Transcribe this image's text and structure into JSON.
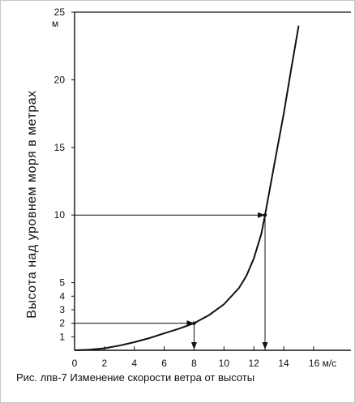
{
  "chart_data": {
    "type": "line",
    "title": "",
    "ylabel": "Высота  над  уровнем  моря  в  метрах",
    "y_unit": "м",
    "x_unit": "м/с",
    "x_ticks": [
      "0",
      "2",
      "4",
      "6",
      "8",
      "10",
      "12",
      "14",
      "16 м/с"
    ],
    "y_ticks": [
      "1",
      "2",
      "3",
      "4",
      "5",
      "10",
      "15",
      "20",
      "25"
    ],
    "xlim": [
      0,
      18.5
    ],
    "ylim": [
      0,
      25
    ],
    "series": [
      {
        "x": [
          0,
          1,
          2,
          3,
          4,
          5,
          6,
          7,
          8,
          9,
          10,
          11,
          11.5,
          12,
          12.5,
          12.75,
          13,
          13.5,
          14,
          14.5,
          15
        ],
        "y": [
          0,
          0.05,
          0.15,
          0.35,
          0.6,
          0.9,
          1.25,
          1.6,
          2.0,
          2.6,
          3.4,
          4.6,
          5.5,
          6.8,
          8.6,
          10,
          11.5,
          14.5,
          17.5,
          20.8,
          24
        ]
      }
    ],
    "guides": [
      {
        "x": 8,
        "y": 2
      },
      {
        "x": 12.75,
        "y": 10
      }
    ],
    "caption": "Рис. лпв-7  Изменение скорости ветра от высоты"
  }
}
